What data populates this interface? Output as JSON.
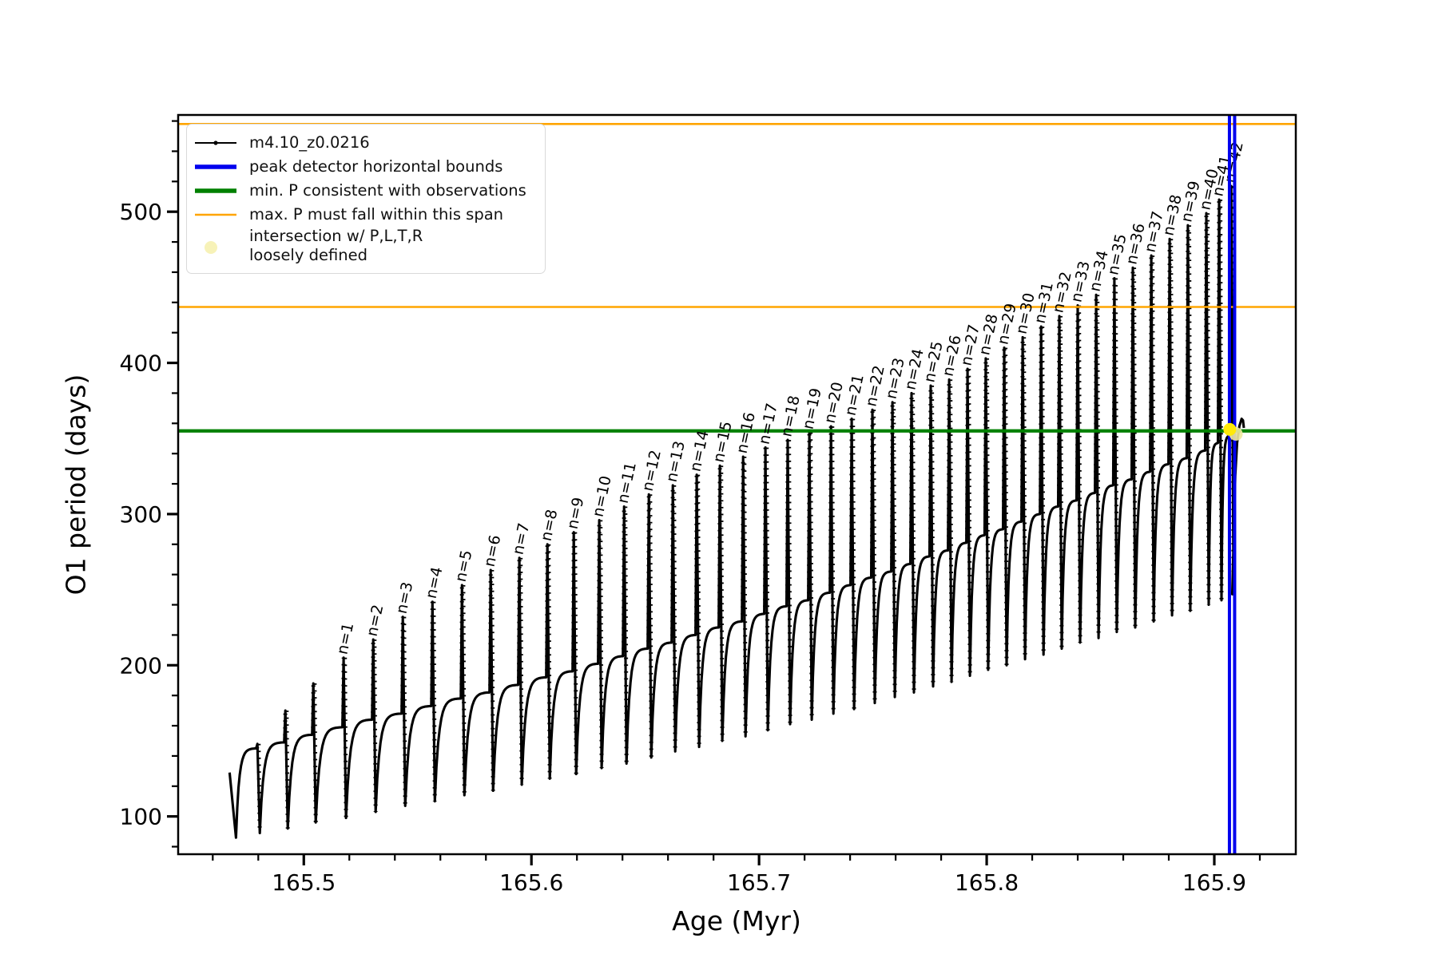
{
  "figure": {
    "background": "#ffffff"
  },
  "axes": {
    "xlabel": "Age (Myr)",
    "ylabel": "O1 period (days)",
    "xlim": [
      165.4448,
      165.9358
    ],
    "ylim": [
      75,
      564
    ],
    "xticks": [
      {
        "value": 165.5,
        "label": "165.5"
      },
      {
        "value": 165.6,
        "label": "165.6"
      },
      {
        "value": 165.7,
        "label": "165.7"
      },
      {
        "value": 165.8,
        "label": "165.8"
      },
      {
        "value": 165.9,
        "label": "165.9"
      }
    ],
    "yticks": [
      {
        "value": 100,
        "label": "100"
      },
      {
        "value": 200,
        "label": "200"
      },
      {
        "value": 300,
        "label": "300"
      },
      {
        "value": 400,
        "label": "400"
      },
      {
        "value": 500,
        "label": "500"
      }
    ],
    "x_minor_step": 0.02,
    "y_minor_step": 20
  },
  "colors": {
    "series": "#000000",
    "peak_bounds": "#0000ee",
    "min_p": "#008000",
    "max_p": "#ffa500",
    "intersection_bright": "#ffe90a",
    "intersection_pale": "#f0e9a0",
    "legend_dot": "#f7f2b8"
  },
  "legend": {
    "entries": [
      {
        "label": "m4.10_z0.0216",
        "type": "line-dot",
        "color": "#000000"
      },
      {
        "label": "peak detector horizontal bounds",
        "type": "thick-line",
        "color": "#0000ee"
      },
      {
        "label": "min. P consistent with observations",
        "type": "thick-line",
        "color": "#008000"
      },
      {
        "label": "max. P must fall within this span",
        "type": "thin-line",
        "color": "#ffa500"
      },
      {
        "label_lines": [
          "intersection w/ P,L,T,R",
          "loosely defined"
        ],
        "type": "dot",
        "color": "#f7f2b8"
      }
    ]
  },
  "chart_data": {
    "type": "line",
    "series_name": "m4.10_z0.0216",
    "xlabel": "Age (Myr)",
    "ylabel": "O1 period (days)",
    "xlim": [
      165.4448,
      165.9358
    ],
    "ylim": [
      75,
      564
    ],
    "min_p_line": 355,
    "max_p_span": [
      437,
      558
    ],
    "peak_detector_bounds_age": [
      165.90665,
      165.90893
    ],
    "intersection_point": {
      "age": 165.9068,
      "period": 356
    },
    "intersection_point_pale": {
      "age": 165.9095,
      "period": 353
    },
    "lead_in": {
      "age_start": 165.4674,
      "value_start": 129,
      "trough_age": 165.4702,
      "trough_value": 86
    },
    "tail_hook": [
      [
        165.9079,
        247
      ],
      [
        165.9086,
        290
      ],
      [
        165.9092,
        325
      ],
      [
        165.91,
        347
      ],
      [
        165.911,
        358
      ],
      [
        165.912,
        363
      ],
      [
        165.9126,
        362
      ],
      [
        165.913,
        357
      ]
    ],
    "teeth": {
      "n": [
        null,
        null,
        null,
        1,
        2,
        3,
        4,
        5,
        6,
        7,
        8,
        9,
        10,
        11,
        12,
        13,
        14,
        15,
        16,
        17,
        18,
        19,
        20,
        21,
        22,
        23,
        24,
        25,
        26,
        27,
        28,
        29,
        30,
        31,
        32,
        33,
        34,
        35,
        36,
        37,
        38,
        39,
        40,
        41,
        42
      ],
      "age": [
        165.4796,
        165.4919,
        165.5042,
        165.5175,
        165.5305,
        165.5435,
        165.5565,
        165.5695,
        165.5821,
        165.5947,
        165.607,
        165.6186,
        165.6298,
        165.6407,
        165.6516,
        165.6621,
        165.6726,
        165.6828,
        165.693,
        165.7028,
        165.7126,
        165.7221,
        165.7316,
        165.7407,
        165.7498,
        165.7586,
        165.767,
        165.7754,
        165.7835,
        165.7916,
        165.7996,
        165.8077,
        165.8158,
        165.8239,
        165.8319,
        165.84,
        165.8481,
        165.8561,
        165.8642,
        165.8723,
        165.8804,
        165.8884,
        165.8965,
        165.9021,
        165.9074
      ],
      "peak": [
        148,
        170,
        188,
        205,
        217,
        232,
        242,
        253,
        263,
        271,
        280,
        288,
        296,
        305,
        313,
        319,
        326,
        332,
        338,
        344,
        349,
        354,
        358,
        363,
        369,
        374,
        380,
        385,
        389,
        396,
        403,
        410,
        417,
        424,
        431,
        438,
        445,
        456,
        463,
        471,
        482,
        491,
        499,
        508,
        517
      ],
      "trough": [
        89,
        92,
        96,
        99,
        103,
        107,
        110,
        114,
        117,
        121,
        125,
        128,
        132,
        135,
        139,
        143,
        146,
        150,
        153,
        157,
        161,
        164,
        168,
        171,
        175,
        179,
        182,
        186,
        189,
        193,
        197,
        200,
        204,
        207,
        211,
        215,
        218,
        222,
        225,
        229,
        233,
        236,
        240,
        243,
        247
      ],
      "shoulder": [
        145,
        149,
        154,
        159,
        164,
        168,
        173,
        178,
        182,
        187,
        192,
        196,
        201,
        206,
        211,
        215,
        220,
        225,
        229,
        234,
        239,
        243,
        248,
        253,
        258,
        262,
        267,
        272,
        276,
        281,
        286,
        290,
        295,
        300,
        305,
        309,
        314,
        319,
        323,
        328,
        333,
        337,
        342,
        347,
        352
      ]
    }
  }
}
